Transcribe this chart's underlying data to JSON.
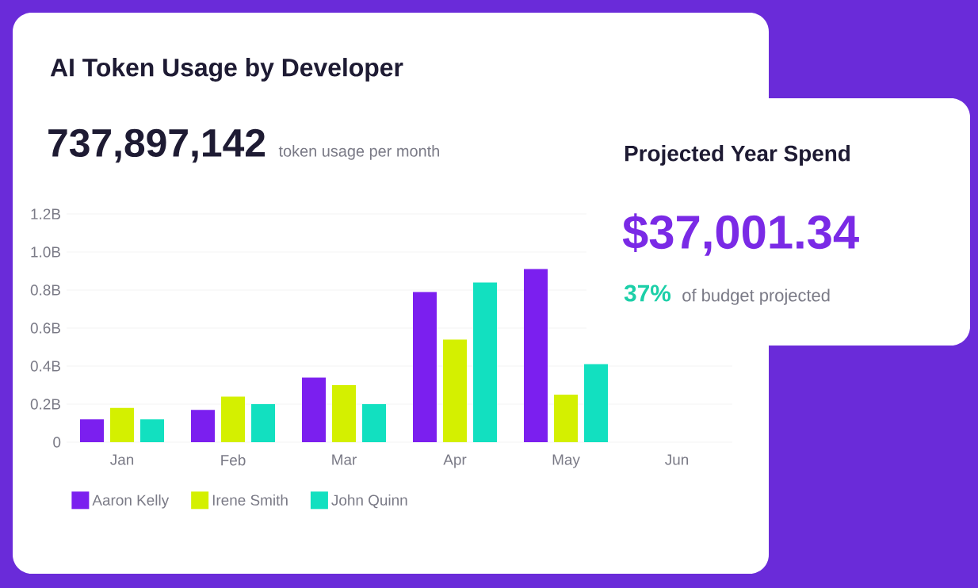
{
  "chart_data": {
    "type": "bar",
    "title": "AI Token Usage by Developer",
    "subtitle": "737,897,142",
    "annotations": [
      "token usage per month",
      "Projected Year Spend",
      "$37,001.34",
      "37%",
      "of budget projected"
    ],
    "categories": [
      "Jan",
      "Feb",
      "Mar",
      "Apr",
      "May",
      "Jun"
    ],
    "series": [
      {
        "name": "Aaron Kelly",
        "color": "#7b1fef",
        "values": [
          0.12,
          0.17,
          0.34,
          0.79,
          0.91,
          null
        ]
      },
      {
        "name": "Irene Smith",
        "color": "#d4f000",
        "values": [
          0.18,
          0.24,
          0.3,
          0.54,
          0.25,
          null
        ]
      },
      {
        "name": "John Quinn",
        "color": "#12e0c0",
        "values": [
          0.12,
          0.2,
          0.2,
          0.84,
          0.41,
          null
        ]
      }
    ],
    "ylim": [
      0,
      1.2
    ],
    "yticks": [
      0,
      {
        "value": 0.2,
        "label": "0.2B"
      },
      {
        "value": 0.4,
        "label": "0.4B"
      },
      {
        "value": 0.6,
        "label": "0.6B"
      },
      {
        "value": 0.8,
        "label": "0.8B"
      },
      {
        "value": 1.0,
        "label": "1.0B"
      },
      {
        "value": 1.2,
        "label": "1.2B"
      }
    ],
    "grid": "y",
    "legend": "bottom"
  }
}
